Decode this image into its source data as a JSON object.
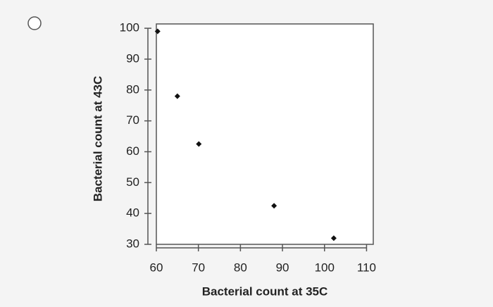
{
  "chart_data": {
    "type": "scatter",
    "x_label": "Bacterial count at 35C",
    "y_label": "Bacterial count at 43C",
    "x": [
      60.3,
      65,
      70.1,
      88,
      102.2
    ],
    "values": [
      99,
      78,
      62.5,
      42.5,
      32
    ],
    "color": "#111111",
    "xlim": [
      60,
      111.6
    ],
    "ylim": [
      30,
      101.4
    ],
    "xticks": [
      60,
      70,
      80,
      90,
      100,
      110
    ],
    "yticks": [
      30,
      40,
      50,
      60,
      70,
      80,
      90,
      100
    ],
    "grid": false
  }
}
